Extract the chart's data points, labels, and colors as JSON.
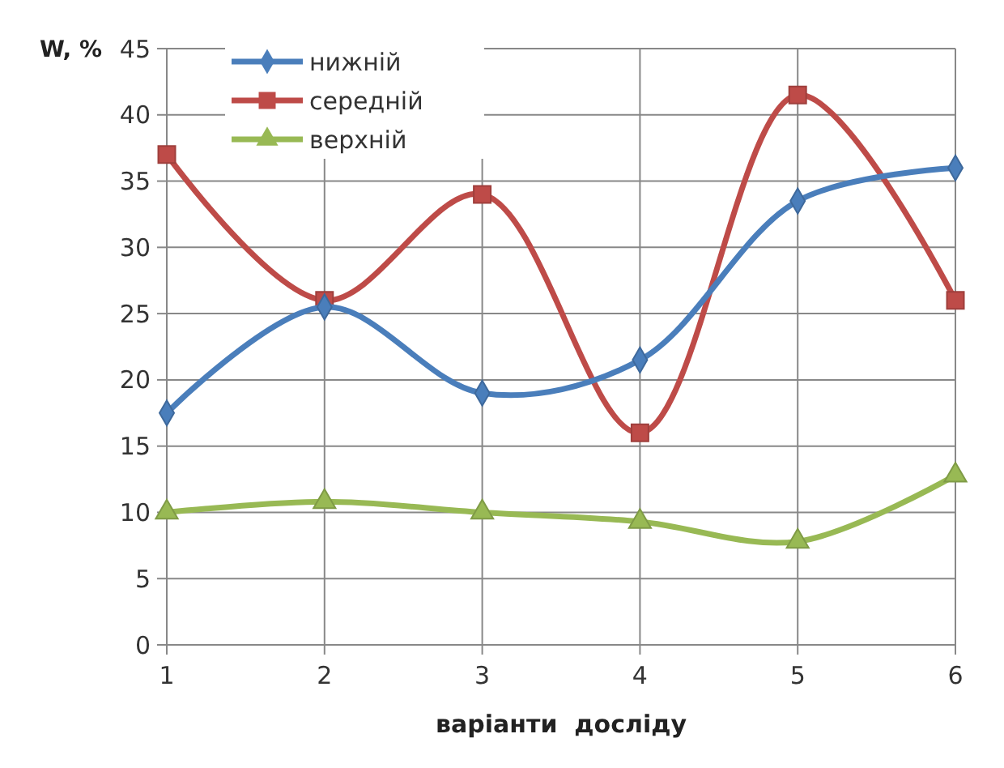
{
  "chart_data": {
    "type": "line",
    "ylabel": "W, %",
    "xlabel": "варіанти  досліду",
    "categories": [
      "1",
      "2",
      "3",
      "4",
      "5",
      "6"
    ],
    "ylim": [
      0,
      45
    ],
    "yticks": [
      0,
      5,
      10,
      15,
      20,
      25,
      30,
      35,
      40,
      45
    ],
    "grid": true,
    "legend": "top left",
    "line_style": "solid",
    "series": [
      {
        "name": "нижній",
        "color": "#4a7ebb",
        "marker": "diamond",
        "values": [
          17.5,
          25.5,
          19,
          21.5,
          33.5,
          36
        ]
      },
      {
        "name": "середній",
        "color": "#be4b48",
        "marker": "square",
        "values": [
          37,
          26,
          34,
          16,
          41.5,
          26
        ]
      },
      {
        "name": "верхній",
        "color": "#98b954",
        "marker": "triangle",
        "values": [
          10,
          10.8,
          10,
          9.3,
          7.8,
          12.8
        ]
      }
    ]
  }
}
